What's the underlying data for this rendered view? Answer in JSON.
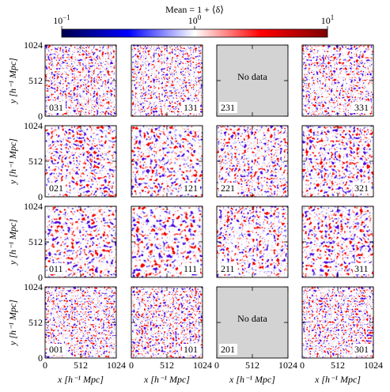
{
  "figure": {
    "colorbar": {
      "label": "Mean = 1 + ⟨δ⟩",
      "lim": [
        0.1,
        10
      ],
      "log": true,
      "ticks": [
        {
          "value": 0.1,
          "label": "10",
          "exponent": "−1"
        },
        {
          "value": 1,
          "label": "10",
          "exponent": "0"
        },
        {
          "value": 10,
          "label": "10",
          "exponent": "1"
        }
      ]
    },
    "axes": {
      "x_label": "x [h⁻¹ Mpc]",
      "y_label": "y [h⁻¹ Mpc]",
      "xlim": [
        0,
        1024
      ],
      "ylim": [
        0,
        1024
      ],
      "xticks": [
        0,
        512,
        1024
      ],
      "yticks": [
        0,
        512,
        1024
      ]
    },
    "panels": [
      [
        {
          "label": "031"
        },
        {
          "label": "131"
        },
        {
          "label": "231",
          "note": "No data"
        },
        {
          "label": "331"
        }
      ],
      [
        {
          "label": "021"
        },
        {
          "label": "121"
        },
        {
          "label": "221"
        },
        {
          "label": "321"
        }
      ],
      [
        {
          "label": "011"
        },
        {
          "label": "111"
        },
        {
          "label": "211"
        },
        {
          "label": "311"
        }
      ],
      [
        {
          "label": "001"
        },
        {
          "label": "101"
        },
        {
          "label": "201",
          "note": "No data"
        },
        {
          "label": "301"
        }
      ]
    ]
  }
}
